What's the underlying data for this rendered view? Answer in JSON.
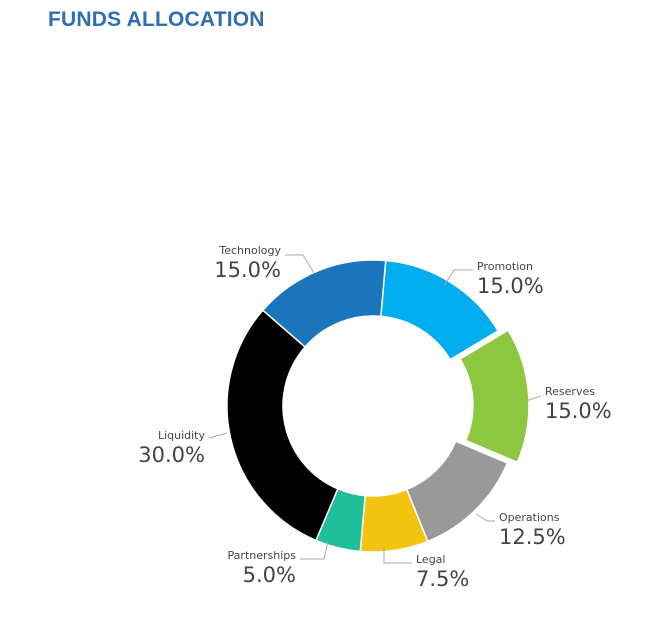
{
  "chart_data": {
    "type": "donut",
    "title": "FUNDS ALLOCATION",
    "slices": [
      {
        "name": "Promotion",
        "value": 15.0,
        "label": "15.0%",
        "color": "#00adef",
        "exploded": false
      },
      {
        "name": "Reserves",
        "value": 15.0,
        "label": "15.0%",
        "color": "#8dc63f",
        "exploded": true
      },
      {
        "name": "Operations",
        "value": 12.5,
        "label": "12.5%",
        "color": "#999999",
        "exploded": false
      },
      {
        "name": "Legal",
        "value": 7.5,
        "label": "7.5%",
        "color": "#f2c40f",
        "exploded": false
      },
      {
        "name": "Partnerships",
        "value": 5.0,
        "label": "5.0%",
        "color": "#1fbf9c",
        "exploded": false
      },
      {
        "name": "Liquidity",
        "value": 30.0,
        "label": "30.0%",
        "color": "#000000",
        "exploded": false
      },
      {
        "name": "Technology",
        "value": 15.0,
        "label": "15.0%",
        "color": "#1a75bc",
        "exploded": false
      }
    ],
    "start_angle_deg": 5,
    "direction": "clockwise",
    "legend": "none"
  }
}
